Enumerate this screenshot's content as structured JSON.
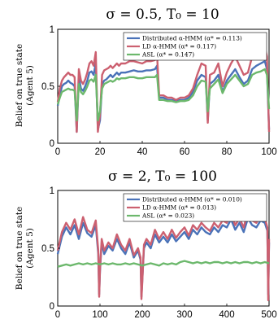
{
  "chart_data": [
    {
      "type": "line",
      "title": "σ = 0.5, T₀ = 10",
      "ylabel_line1": "Belief on true state",
      "ylabel_line2": "(Agent 5)",
      "xlim": [
        0,
        100
      ],
      "ylim": [
        0,
        1
      ],
      "xticks": [
        "0",
        "20",
        "40",
        "60",
        "80",
        "100"
      ],
      "yticks": [
        "0",
        "0.5",
        "1"
      ],
      "legend_position": "top-right",
      "series": [
        {
          "name": "Distributed α-HMM (α* = 0.113)",
          "color": "#4a72b8",
          "x": [
            0,
            1,
            2,
            3,
            4,
            5,
            6,
            7,
            8,
            9,
            10,
            11,
            12,
            13,
            14,
            15,
            16,
            17,
            18,
            19,
            20,
            21,
            22,
            23,
            24,
            25,
            26,
            27,
            28,
            29,
            30,
            32,
            34,
            36,
            38,
            40,
            42,
            44,
            46,
            47,
            48,
            50,
            52,
            54,
            56,
            58,
            60,
            62,
            64,
            66,
            68,
            70,
            71,
            72,
            74,
            76,
            78,
            80,
            82,
            84,
            86,
            88,
            90,
            92,
            94,
            96,
            98,
            99,
            100
          ],
          "values": [
            0.33,
            0.42,
            0.5,
            0.52,
            0.53,
            0.55,
            0.53,
            0.52,
            0.5,
            0.1,
            0.58,
            0.48,
            0.46,
            0.5,
            0.55,
            0.62,
            0.63,
            0.6,
            0.7,
            0.12,
            0.2,
            0.52,
            0.55,
            0.56,
            0.58,
            0.6,
            0.58,
            0.6,
            0.62,
            0.6,
            0.62,
            0.62,
            0.63,
            0.64,
            0.63,
            0.63,
            0.64,
            0.64,
            0.65,
            0.68,
            0.4,
            0.4,
            0.38,
            0.38,
            0.37,
            0.38,
            0.38,
            0.4,
            0.45,
            0.55,
            0.6,
            0.58,
            0.2,
            0.52,
            0.55,
            0.6,
            0.45,
            0.55,
            0.6,
            0.65,
            0.58,
            0.52,
            0.55,
            0.65,
            0.68,
            0.7,
            0.72,
            0.65,
            0.12
          ]
        },
        {
          "name": "LD α-HMM (α* = 0.117)",
          "color": "#cc6070",
          "x": [
            0,
            1,
            2,
            3,
            4,
            5,
            6,
            7,
            8,
            9,
            10,
            11,
            12,
            13,
            14,
            15,
            16,
            17,
            18,
            19,
            20,
            21,
            22,
            23,
            24,
            25,
            26,
            27,
            28,
            29,
            30,
            32,
            34,
            36,
            38,
            40,
            42,
            44,
            46,
            47,
            48,
            50,
            52,
            54,
            56,
            58,
            60,
            62,
            64,
            66,
            68,
            70,
            71,
            72,
            74,
            76,
            78,
            80,
            82,
            84,
            86,
            88,
            90,
            92,
            94,
            96,
            98,
            99,
            100
          ],
          "values": [
            0.36,
            0.48,
            0.55,
            0.58,
            0.6,
            0.62,
            0.6,
            0.6,
            0.58,
            0.1,
            0.65,
            0.55,
            0.52,
            0.56,
            0.62,
            0.7,
            0.72,
            0.68,
            0.8,
            0.1,
            0.25,
            0.6,
            0.64,
            0.65,
            0.66,
            0.68,
            0.66,
            0.68,
            0.7,
            0.68,
            0.7,
            0.7,
            0.72,
            0.72,
            0.71,
            0.7,
            0.72,
            0.72,
            0.73,
            0.78,
            0.42,
            0.42,
            0.4,
            0.4,
            0.38,
            0.4,
            0.4,
            0.42,
            0.48,
            0.6,
            0.7,
            0.68,
            0.18,
            0.6,
            0.62,
            0.7,
            0.5,
            0.62,
            0.7,
            0.76,
            0.68,
            0.6,
            0.62,
            0.76,
            0.8,
            0.82,
            0.85,
            0.76,
            0.1
          ]
        },
        {
          "name": "ASL (α* = 0.147)",
          "color": "#6cb86c",
          "x": [
            0,
            1,
            2,
            3,
            4,
            5,
            6,
            7,
            8,
            9,
            10,
            11,
            12,
            13,
            14,
            15,
            16,
            17,
            18,
            19,
            20,
            21,
            22,
            23,
            24,
            25,
            26,
            27,
            28,
            29,
            30,
            32,
            34,
            36,
            38,
            40,
            42,
            44,
            46,
            47,
            48,
            50,
            52,
            54,
            56,
            58,
            60,
            62,
            64,
            66,
            68,
            70,
            71,
            72,
            74,
            76,
            78,
            80,
            82,
            84,
            86,
            88,
            90,
            92,
            94,
            96,
            98,
            99,
            100
          ],
          "values": [
            0.34,
            0.4,
            0.45,
            0.46,
            0.47,
            0.48,
            0.47,
            0.47,
            0.46,
            0.2,
            0.52,
            0.45,
            0.43,
            0.46,
            0.5,
            0.55,
            0.56,
            0.54,
            0.6,
            0.2,
            0.28,
            0.48,
            0.52,
            0.53,
            0.54,
            0.55,
            0.54,
            0.55,
            0.57,
            0.56,
            0.57,
            0.57,
            0.58,
            0.58,
            0.57,
            0.57,
            0.58,
            0.58,
            0.58,
            0.6,
            0.38,
            0.38,
            0.37,
            0.37,
            0.36,
            0.37,
            0.37,
            0.38,
            0.42,
            0.5,
            0.55,
            0.54,
            0.28,
            0.48,
            0.52,
            0.56,
            0.44,
            0.52,
            0.56,
            0.6,
            0.55,
            0.5,
            0.52,
            0.6,
            0.62,
            0.63,
            0.65,
            0.6,
            0.3
          ]
        }
      ]
    },
    {
      "type": "line",
      "title": "σ = 2, T₀ = 100",
      "ylabel_line1": "Belief on true state",
      "ylabel_line2": "(Agent 5)",
      "xlim": [
        0,
        500
      ],
      "ylim": [
        0,
        1
      ],
      "xticks": [
        "0",
        "100",
        "200",
        "300",
        "400",
        "500"
      ],
      "yticks": [
        "0",
        "0.5",
        "1"
      ],
      "legend_position": "top-right",
      "series": [
        {
          "name": "Distributed α-HMM (α* = 0.010)",
          "color": "#4a72b8",
          "x": [
            0,
            10,
            20,
            30,
            40,
            50,
            60,
            70,
            80,
            90,
            96,
            98,
            100,
            104,
            110,
            120,
            130,
            140,
            150,
            160,
            170,
            180,
            190,
            196,
            198,
            200,
            204,
            210,
            220,
            230,
            240,
            250,
            260,
            270,
            280,
            290,
            300,
            310,
            320,
            330,
            340,
            350,
            360,
            370,
            380,
            390,
            400,
            410,
            420,
            430,
            440,
            450,
            460,
            470,
            480,
            490,
            496,
            498,
            500
          ],
          "values": [
            0.45,
            0.6,
            0.68,
            0.62,
            0.7,
            0.58,
            0.72,
            0.63,
            0.6,
            0.7,
            0.45,
            0.1,
            0.3,
            0.55,
            0.45,
            0.52,
            0.48,
            0.58,
            0.5,
            0.45,
            0.55,
            0.42,
            0.48,
            0.4,
            0.08,
            0.22,
            0.5,
            0.55,
            0.5,
            0.62,
            0.55,
            0.6,
            0.55,
            0.62,
            0.56,
            0.6,
            0.64,
            0.58,
            0.66,
            0.62,
            0.68,
            0.64,
            0.62,
            0.68,
            0.64,
            0.7,
            0.68,
            0.75,
            0.66,
            0.72,
            0.64,
            0.76,
            0.7,
            0.68,
            0.74,
            0.72,
            0.65,
            0.1,
            0.55
          ]
        },
        {
          "name": "LD α-HMM (α* = 0.013)",
          "color": "#cc6070",
          "x": [
            0,
            10,
            20,
            30,
            40,
            50,
            60,
            70,
            80,
            90,
            96,
            98,
            100,
            104,
            110,
            120,
            130,
            140,
            150,
            160,
            170,
            180,
            190,
            196,
            198,
            200,
            204,
            210,
            220,
            230,
            240,
            250,
            260,
            270,
            280,
            290,
            300,
            310,
            320,
            330,
            340,
            350,
            360,
            370,
            380,
            390,
            400,
            410,
            420,
            430,
            440,
            450,
            460,
            470,
            480,
            490,
            496,
            498,
            500
          ],
          "values": [
            0.48,
            0.64,
            0.72,
            0.66,
            0.75,
            0.62,
            0.77,
            0.66,
            0.63,
            0.74,
            0.48,
            0.08,
            0.32,
            0.58,
            0.48,
            0.55,
            0.5,
            0.62,
            0.53,
            0.48,
            0.58,
            0.44,
            0.5,
            0.42,
            0.06,
            0.2,
            0.53,
            0.58,
            0.53,
            0.66,
            0.58,
            0.64,
            0.58,
            0.66,
            0.59,
            0.64,
            0.68,
            0.61,
            0.7,
            0.66,
            0.72,
            0.68,
            0.65,
            0.72,
            0.68,
            0.74,
            0.72,
            0.8,
            0.7,
            0.76,
            0.68,
            0.82,
            0.74,
            0.72,
            0.78,
            0.76,
            0.68,
            0.05,
            0.58
          ]
        },
        {
          "name": "ASL (α* = 0.023)",
          "color": "#6cb86c",
          "x": [
            0,
            10,
            20,
            30,
            40,
            50,
            60,
            70,
            80,
            90,
            100,
            110,
            120,
            130,
            140,
            150,
            160,
            170,
            180,
            190,
            200,
            210,
            220,
            230,
            240,
            250,
            260,
            270,
            280,
            290,
            300,
            310,
            320,
            330,
            340,
            350,
            360,
            370,
            380,
            390,
            400,
            410,
            420,
            430,
            440,
            450,
            460,
            470,
            480,
            490,
            500
          ],
          "values": [
            0.34,
            0.35,
            0.36,
            0.35,
            0.36,
            0.37,
            0.36,
            0.37,
            0.36,
            0.37,
            0.36,
            0.37,
            0.36,
            0.37,
            0.36,
            0.36,
            0.37,
            0.36,
            0.37,
            0.36,
            0.35,
            0.36,
            0.37,
            0.36,
            0.35,
            0.37,
            0.36,
            0.37,
            0.36,
            0.38,
            0.39,
            0.38,
            0.37,
            0.38,
            0.37,
            0.38,
            0.37,
            0.38,
            0.38,
            0.37,
            0.38,
            0.37,
            0.38,
            0.37,
            0.38,
            0.38,
            0.37,
            0.38,
            0.37,
            0.38,
            0.37
          ]
        }
      ]
    }
  ]
}
